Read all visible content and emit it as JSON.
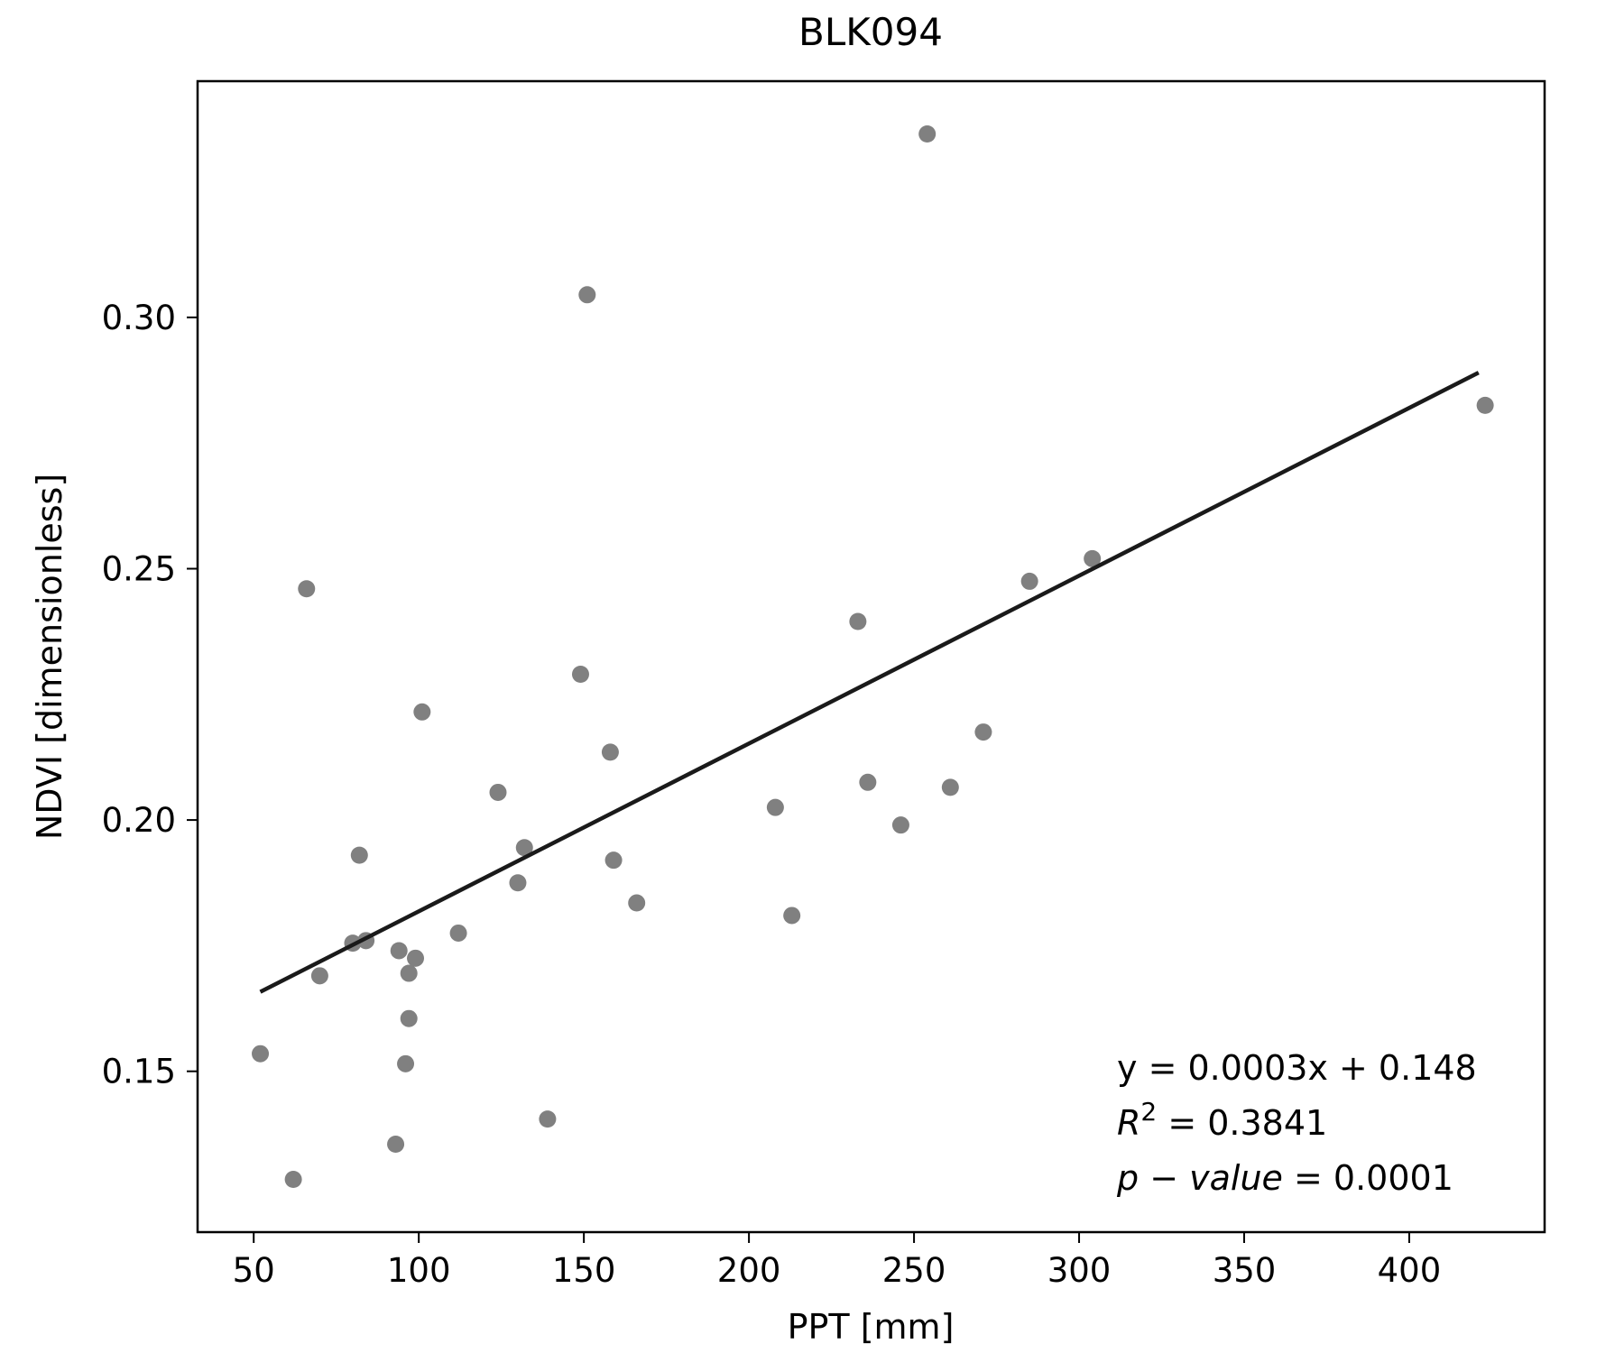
{
  "chart_data": {
    "type": "scatter",
    "title": "BLK094",
    "xlabel": "PPT [mm]",
    "ylabel": "NDVI [dimensionless]",
    "xlim": [
      33,
      441
    ],
    "ylim": [
      0.118,
      0.347
    ],
    "xticks": [
      50,
      100,
      150,
      200,
      250,
      300,
      350,
      400
    ],
    "yticks": [
      0.15,
      0.2,
      0.25,
      0.3
    ],
    "xtick_labels": [
      "50",
      "100",
      "150",
      "200",
      "250",
      "300",
      "350",
      "400"
    ],
    "ytick_labels": [
      "0.15",
      "0.20",
      "0.25",
      "0.30"
    ],
    "grid": false,
    "point_color": "#808080",
    "line_color": "#1a1a1a",
    "points": [
      {
        "x": 52,
        "y": 0.1535
      },
      {
        "x": 62,
        "y": 0.1285
      },
      {
        "x": 66,
        "y": 0.246
      },
      {
        "x": 70,
        "y": 0.169
      },
      {
        "x": 80,
        "y": 0.1755
      },
      {
        "x": 82,
        "y": 0.193
      },
      {
        "x": 84,
        "y": 0.176
      },
      {
        "x": 93,
        "y": 0.1355
      },
      {
        "x": 94,
        "y": 0.174
      },
      {
        "x": 96,
        "y": 0.1515
      },
      {
        "x": 97,
        "y": 0.1605
      },
      {
        "x": 97,
        "y": 0.1695
      },
      {
        "x": 99,
        "y": 0.1725
      },
      {
        "x": 101,
        "y": 0.2215
      },
      {
        "x": 112,
        "y": 0.1775
      },
      {
        "x": 124,
        "y": 0.2055
      },
      {
        "x": 130,
        "y": 0.1875
      },
      {
        "x": 132,
        "y": 0.1945
      },
      {
        "x": 139,
        "y": 0.1405
      },
      {
        "x": 149,
        "y": 0.229
      },
      {
        "x": 151,
        "y": 0.3045
      },
      {
        "x": 158,
        "y": 0.2135
      },
      {
        "x": 159,
        "y": 0.192
      },
      {
        "x": 166,
        "y": 0.1835
      },
      {
        "x": 208,
        "y": 0.2025
      },
      {
        "x": 213,
        "y": 0.181
      },
      {
        "x": 233,
        "y": 0.2395
      },
      {
        "x": 236,
        "y": 0.2075
      },
      {
        "x": 246,
        "y": 0.199
      },
      {
        "x": 254,
        "y": 0.3365
      },
      {
        "x": 261,
        "y": 0.2065
      },
      {
        "x": 271,
        "y": 0.2175
      },
      {
        "x": 285,
        "y": 0.2475
      },
      {
        "x": 304,
        "y": 0.252
      },
      {
        "x": 423,
        "y": 0.2825
      }
    ],
    "regression": {
      "x": [
        52,
        421
      ],
      "y": [
        0.1658,
        0.289
      ]
    },
    "annotation": {
      "line1": "y = 0.0003x + 0.148",
      "line2_prefix": "R",
      "line2_sup": "2",
      "line2_rest": " = 0.3841",
      "line3_italic": "p − value",
      "line3_rest": " = 0.0001"
    }
  }
}
